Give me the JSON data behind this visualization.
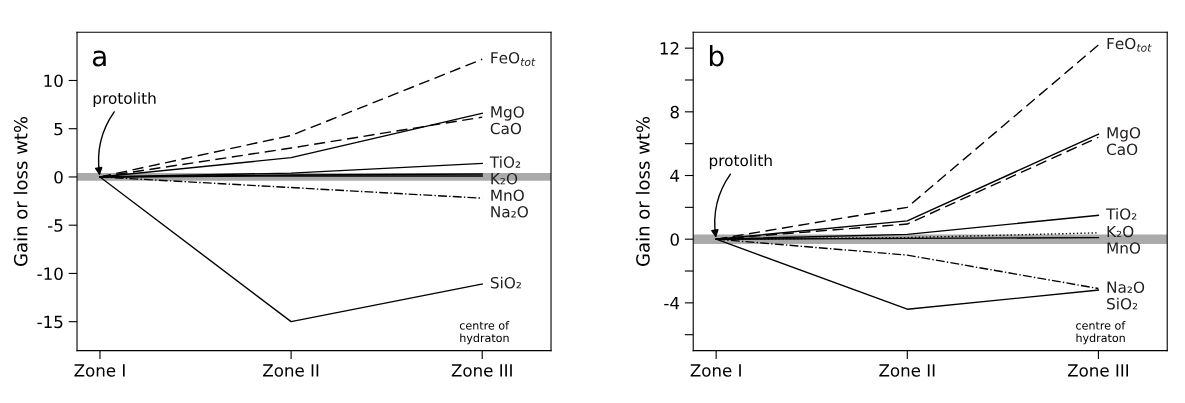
{
  "chart_data": [
    {
      "type": "line",
      "title": "a",
      "ylabel": "Gain or loss wt%",
      "categories": [
        "Zone I",
        "Zone II",
        "Zone III"
      ],
      "ylim": [
        -18,
        15
      ],
      "yticks": [
        -15,
        -10,
        -5,
        0,
        5,
        10
      ],
      "grid": false,
      "legend": false,
      "marker": "none",
      "bands": [
        {
          "axis": "y",
          "from": -0.4,
          "to": 0.4,
          "color": "#aaaaaa"
        }
      ],
      "annotations": [
        {
          "text": "protolith",
          "x": "Zone I",
          "y": 0
        },
        "centre of\nhydraton"
      ],
      "series": [
        {
          "name": "FeO$_{tot}$",
          "color": "#000000",
          "line_style": "dashed",
          "values": [
            0,
            4.3,
            12.2
          ]
        },
        {
          "name": "MgO",
          "color": "#000000",
          "line_style": "solid",
          "values": [
            0,
            2.0,
            6.6
          ]
        },
        {
          "name": "CaO",
          "color": "#000000",
          "line_style": "dashed",
          "values": [
            0,
            3.0,
            6.2
          ]
        },
        {
          "name": "TiO₂",
          "color": "#000000",
          "line_style": "solid",
          "values": [
            0,
            0.4,
            1.4
          ]
        },
        {
          "name": "MnO",
          "color": "#000000",
          "line_style": "solid",
          "values": [
            0,
            0.1,
            0.1
          ]
        },
        {
          "name": "K₂O",
          "color": "#000000",
          "line_style": "solid",
          "values": [
            0,
            0.2,
            0.3
          ]
        },
        {
          "name": "Na₂O",
          "color": "#000000",
          "line_style": "dashdot",
          "values": [
            0,
            -1.1,
            -2.2
          ]
        },
        {
          "name": "SiO₂",
          "color": "#000000",
          "line_style": "solid",
          "values": [
            0,
            -15.0,
            -11.1
          ]
        }
      ]
    },
    {
      "type": "line",
      "title": "b",
      "ylabel": "Gain or loss wt%",
      "categories": [
        "Zone I",
        "Zone II",
        "Zone III"
      ],
      "ylim": [
        -7,
        13
      ],
      "yticks": [
        {
          "value": -6,
          "label": null
        },
        -4,
        {
          "value": -2,
          "label": null
        },
        0,
        {
          "value": 2,
          "label": null
        },
        4,
        {
          "value": 6,
          "label": null
        },
        8,
        {
          "value": 10,
          "label": null
        },
        12
      ],
      "grid": false,
      "legend": false,
      "marker": "none",
      "bands": [
        {
          "axis": "y",
          "from": -0.3,
          "to": 0.3,
          "color": "#aaaaaa"
        }
      ],
      "annotations": [
        {
          "text": "protolith",
          "x": "Zone I",
          "y": 0
        },
        "centre of\nhydraton"
      ],
      "series": [
        {
          "name": "FeO$_{tot}$",
          "color": "#000000",
          "line_style": "dashed",
          "values": [
            0,
            2.0,
            12.2
          ]
        },
        {
          "name": "MgO",
          "color": "#000000",
          "line_style": "solid",
          "values": [
            0,
            1.15,
            6.6
          ]
        },
        {
          "name": "CaO",
          "color": "#000000",
          "line_style": "dashed",
          "values": [
            0,
            0.95,
            6.4
          ]
        },
        {
          "name": "TiO₂",
          "color": "#000000",
          "line_style": "solid",
          "values": [
            0,
            0.3,
            1.5
          ]
        },
        {
          "name": "K₂O",
          "color": "#000000",
          "line_style": "dotted",
          "values": [
            0,
            0.1,
            0.4
          ]
        },
        {
          "name": "MnO",
          "color": "#000000",
          "line_style": "solid",
          "values": [
            0,
            0.05,
            0.1
          ]
        },
        {
          "name": "Na₂O",
          "color": "#000000",
          "line_style": "dashdot",
          "values": [
            0,
            -1.0,
            -3.1
          ]
        },
        {
          "name": "SiO₂",
          "color": "#000000",
          "line_style": "solid",
          "values": [
            0,
            -4.4,
            -3.2
          ]
        }
      ]
    }
  ]
}
